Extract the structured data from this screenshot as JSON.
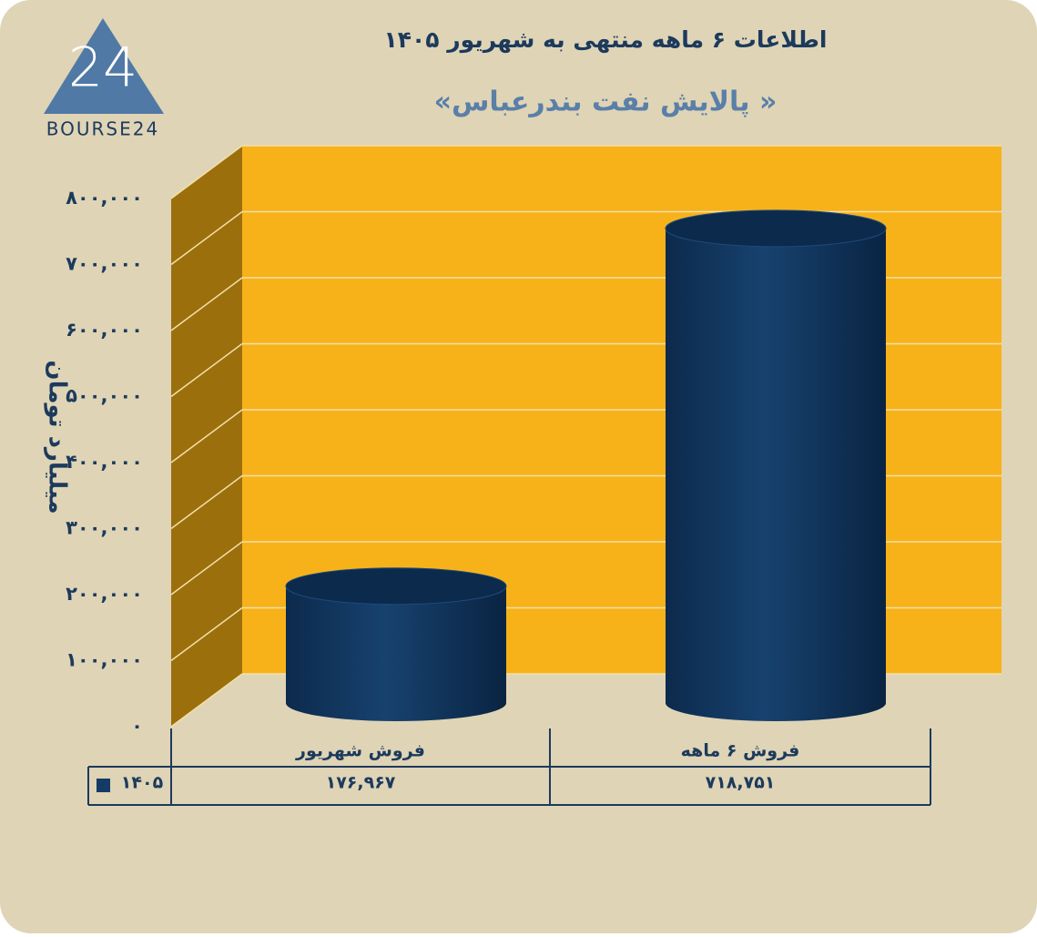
{
  "logo": {
    "mark": "24",
    "text": "BOURSE24"
  },
  "chart_data": {
    "type": "bar3d",
    "title": "اطلاعات ۶ ماهه منتهی به شهریور ۱۴۰۵",
    "subtitle": "«پالایش نفت بندرعباس »",
    "y_label": "میلیارد تومان",
    "categories": [
      "فروش شهریور",
      "فروش ۶ ماهه"
    ],
    "series": [
      {
        "name": "۱۴۰۵",
        "color": "#143b66",
        "values": [
          176967,
          718751
        ],
        "value_labels": [
          "۱۷۶,۹۶۷",
          "۷۱۸,۷۵۱"
        ]
      }
    ],
    "ylim": [
      0,
      800000
    ],
    "yticks": [
      {
        "value": 0,
        "label": "۰"
      },
      {
        "value": 100000,
        "label": "۱۰۰,۰۰۰"
      },
      {
        "value": 200000,
        "label": "۲۰۰,۰۰۰"
      },
      {
        "value": 300000,
        "label": "۳۰۰,۰۰۰"
      },
      {
        "value": 400000,
        "label": "۴۰۰,۰۰۰"
      },
      {
        "value": 500000,
        "label": "۵۰۰,۰۰۰"
      },
      {
        "value": 600000,
        "label": "۶۰۰,۰۰۰"
      },
      {
        "value": 700000,
        "label": "۷۰۰,۰۰۰"
      },
      {
        "value": 800000,
        "label": "۸۰۰,۰۰۰"
      }
    ],
    "grid": true,
    "wall_color": "#f7b21a",
    "side_color": "#9c6f0d"
  }
}
